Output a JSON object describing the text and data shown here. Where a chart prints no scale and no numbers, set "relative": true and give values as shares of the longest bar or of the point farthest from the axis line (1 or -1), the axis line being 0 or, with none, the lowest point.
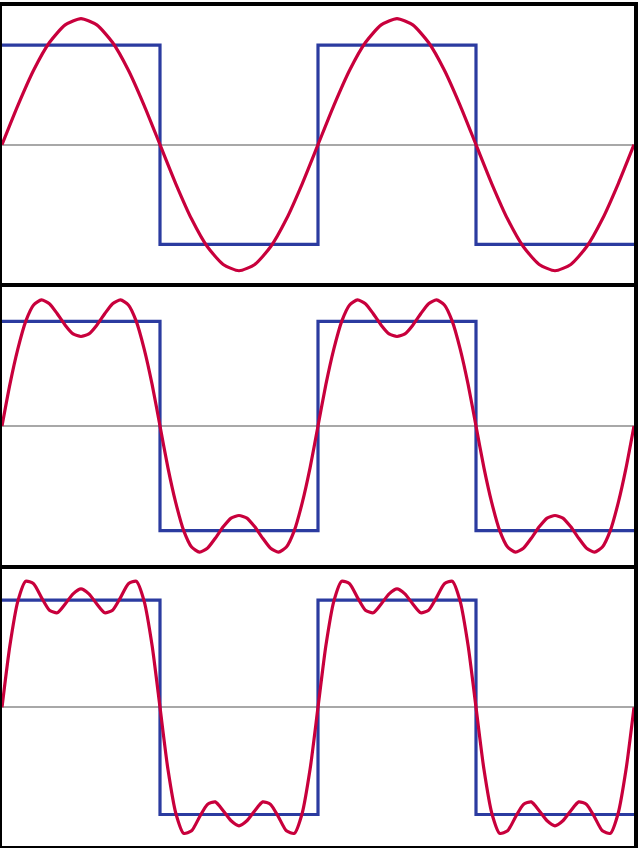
{
  "chart_data": [
    {
      "type": "line",
      "relative": true,
      "tick_labels": false,
      "categories": [
        null,
        null,
        null,
        null,
        null,
        null,
        null,
        null,
        null,
        null,
        null,
        null,
        null,
        null,
        null,
        null,
        null,
        null,
        null,
        null,
        null,
        null,
        null,
        null,
        null,
        null,
        null,
        null,
        null,
        null,
        null,
        null,
        null,
        null,
        null,
        null,
        null,
        null,
        null,
        null,
        null
      ],
      "series": [
        {
          "type": "step",
          "color": "#2b3ba0",
          "values": [
            0.79,
            0.79,
            0.79,
            0.79,
            0.79,
            0.79,
            0.79,
            0.79,
            0.79,
            0.79,
            -0.79,
            -0.79,
            -0.79,
            -0.79,
            -0.79,
            -0.79,
            -0.79,
            -0.79,
            -0.79,
            -0.79,
            0.79,
            0.79,
            0.79,
            0.79,
            0.79,
            0.79,
            0.79,
            0.79,
            0.79,
            0.79,
            -0.79,
            -0.79,
            -0.79,
            -0.79,
            -0.79,
            -0.79,
            -0.79,
            -0.79,
            -0.79,
            -0.79,
            -0.79
          ]
        },
        {
          "color": "#c8003c",
          "values": [
            0,
            0.31,
            0.59,
            0.81,
            0.95,
            1,
            0.95,
            0.81,
            0.59,
            0.31,
            0,
            -0.31,
            -0.59,
            -0.81,
            -0.95,
            -1,
            -0.95,
            -0.81,
            -0.59,
            -0.31,
            0,
            0.31,
            0.59,
            0.81,
            0.95,
            1,
            0.95,
            0.81,
            0.59,
            0.31,
            0,
            -0.31,
            -0.59,
            -0.81,
            -0.95,
            -1,
            -0.95,
            -0.81,
            -0.59,
            -0.31,
            0
          ]
        }
      ]
    },
    {
      "type": "line",
      "relative": true,
      "tick_labels": false,
      "categories": [
        null,
        null,
        null,
        null,
        null,
        null,
        null,
        null,
        null,
        null,
        null,
        null,
        null,
        null,
        null,
        null,
        null,
        null,
        null,
        null,
        null,
        null,
        null,
        null,
        null,
        null,
        null,
        null,
        null,
        null,
        null,
        null,
        null,
        null,
        null,
        null,
        null,
        null,
        null,
        null,
        null,
        null,
        null,
        null,
        null,
        null,
        null,
        null,
        null,
        null,
        null,
        null,
        null,
        null,
        null,
        null,
        null,
        null,
        null,
        null,
        null,
        null,
        null,
        null,
        null,
        null,
        null,
        null,
        null,
        null,
        null,
        null,
        null,
        null,
        null,
        null,
        null,
        null,
        null,
        null,
        null
      ],
      "series": [
        {
          "type": "step",
          "color": "#2b3ba0",
          "values": [
            0.83,
            0.83,
            0.83,
            0.83,
            0.83,
            0.83,
            0.83,
            0.83,
            0.83,
            0.83,
            0.83,
            0.83,
            0.83,
            0.83,
            0.83,
            0.83,
            0.83,
            0.83,
            0.83,
            0.83,
            -0.83,
            -0.83,
            -0.83,
            -0.83,
            -0.83,
            -0.83,
            -0.83,
            -0.83,
            -0.83,
            -0.83,
            -0.83,
            -0.83,
            -0.83,
            -0.83,
            -0.83,
            -0.83,
            -0.83,
            -0.83,
            -0.83,
            -0.83,
            0.83,
            0.83,
            0.83,
            0.83,
            0.83,
            0.83,
            0.83,
            0.83,
            0.83,
            0.83,
            0.83,
            0.83,
            0.83,
            0.83,
            0.83,
            0.83,
            0.83,
            0.83,
            0.83,
            0.83,
            -0.83,
            -0.83,
            -0.83,
            -0.83,
            -0.83,
            -0.83,
            -0.83,
            -0.83,
            -0.83,
            -0.83,
            -0.83,
            -0.83,
            -0.83,
            -0.83,
            -0.83,
            -0.83,
            -0.83,
            -0.83,
            -0.83,
            -0.83,
            -0.83
          ]
        },
        {
          "color": "#c8003c",
          "values": [
            0,
            0.33,
            0.61,
            0.83,
            0.96,
            1,
            0.97,
            0.89,
            0.8,
            0.73,
            0.71,
            0.73,
            0.8,
            0.89,
            0.97,
            1,
            0.96,
            0.83,
            0.61,
            0.33,
            0,
            -0.33,
            -0.61,
            -0.83,
            -0.96,
            -1,
            -0.97,
            -0.89,
            -0.8,
            -0.73,
            -0.71,
            -0.73,
            -0.8,
            -0.89,
            -0.97,
            -1,
            -0.96,
            -0.83,
            -0.61,
            -0.33,
            0,
            0.33,
            0.61,
            0.83,
            0.96,
            1,
            0.97,
            0.89,
            0.8,
            0.73,
            0.71,
            0.73,
            0.8,
            0.89,
            0.97,
            1,
            0.96,
            0.83,
            0.61,
            0.33,
            0,
            -0.33,
            -0.61,
            -0.83,
            -0.96,
            -1,
            -0.97,
            -0.89,
            -0.8,
            -0.73,
            -0.71,
            -0.73,
            -0.8,
            -0.89,
            -0.97,
            -1,
            -0.96,
            -0.83,
            -0.61,
            -0.33,
            0
          ]
        }
      ]
    },
    {
      "type": "line",
      "relative": true,
      "tick_labels": false,
      "categories": [
        null,
        null,
        null,
        null,
        null,
        null,
        null,
        null,
        null,
        null,
        null,
        null,
        null,
        null,
        null,
        null,
        null,
        null,
        null,
        null,
        null,
        null,
        null,
        null,
        null,
        null,
        null,
        null,
        null,
        null,
        null,
        null,
        null,
        null,
        null,
        null,
        null,
        null,
        null,
        null,
        null,
        null,
        null,
        null,
        null,
        null,
        null,
        null,
        null,
        null,
        null,
        null,
        null,
        null,
        null,
        null,
        null,
        null,
        null,
        null,
        null,
        null,
        null,
        null,
        null,
        null,
        null,
        null,
        null,
        null,
        null,
        null,
        null,
        null,
        null,
        null,
        null,
        null,
        null,
        null,
        null
      ],
      "series": [
        {
          "type": "step",
          "color": "#2b3ba0",
          "values": [
            0.85,
            0.85,
            0.85,
            0.85,
            0.85,
            0.85,
            0.85,
            0.85,
            0.85,
            0.85,
            0.85,
            0.85,
            0.85,
            0.85,
            0.85,
            0.85,
            0.85,
            0.85,
            0.85,
            0.85,
            -0.85,
            -0.85,
            -0.85,
            -0.85,
            -0.85,
            -0.85,
            -0.85,
            -0.85,
            -0.85,
            -0.85,
            -0.85,
            -0.85,
            -0.85,
            -0.85,
            -0.85,
            -0.85,
            -0.85,
            -0.85,
            -0.85,
            -0.85,
            0.85,
            0.85,
            0.85,
            0.85,
            0.85,
            0.85,
            0.85,
            0.85,
            0.85,
            0.85,
            0.85,
            0.85,
            0.85,
            0.85,
            0.85,
            0.85,
            0.85,
            0.85,
            0.85,
            0.85,
            -0.85,
            -0.85,
            -0.85,
            -0.85,
            -0.85,
            -0.85,
            -0.85,
            -0.85,
            -0.85,
            -0.85,
            -0.85,
            -0.85,
            -0.85,
            -0.85,
            -0.85,
            -0.85,
            -0.85,
            -0.85,
            -0.85,
            -0.85,
            -0.85
          ]
        },
        {
          "color": "#c8003c",
          "values": [
            0,
            0.49,
            0.84,
            1,
            0.98,
            0.87,
            0.77,
            0.75,
            0.82,
            0.9,
            0.94,
            0.9,
            0.82,
            0.75,
            0.77,
            0.87,
            0.98,
            1,
            0.84,
            0.49,
            0,
            -0.49,
            -0.84,
            -1,
            -0.98,
            -0.87,
            -0.77,
            -0.75,
            -0.82,
            -0.9,
            -0.94,
            -0.9,
            -0.82,
            -0.75,
            -0.77,
            -0.87,
            -0.98,
            -1,
            -0.84,
            -0.49,
            0,
            0.49,
            0.84,
            1,
            0.98,
            0.87,
            0.77,
            0.75,
            0.82,
            0.9,
            0.94,
            0.9,
            0.82,
            0.75,
            0.77,
            0.87,
            0.98,
            1,
            0.84,
            0.49,
            0,
            -0.49,
            -0.84,
            -1,
            -0.98,
            -0.87,
            -0.77,
            -0.75,
            -0.82,
            -0.9,
            -0.94,
            -0.9,
            -0.82,
            -0.75,
            -0.77,
            -0.87,
            -0.98,
            -1,
            -0.84,
            -0.49,
            0
          ]
        }
      ]
    }
  ]
}
